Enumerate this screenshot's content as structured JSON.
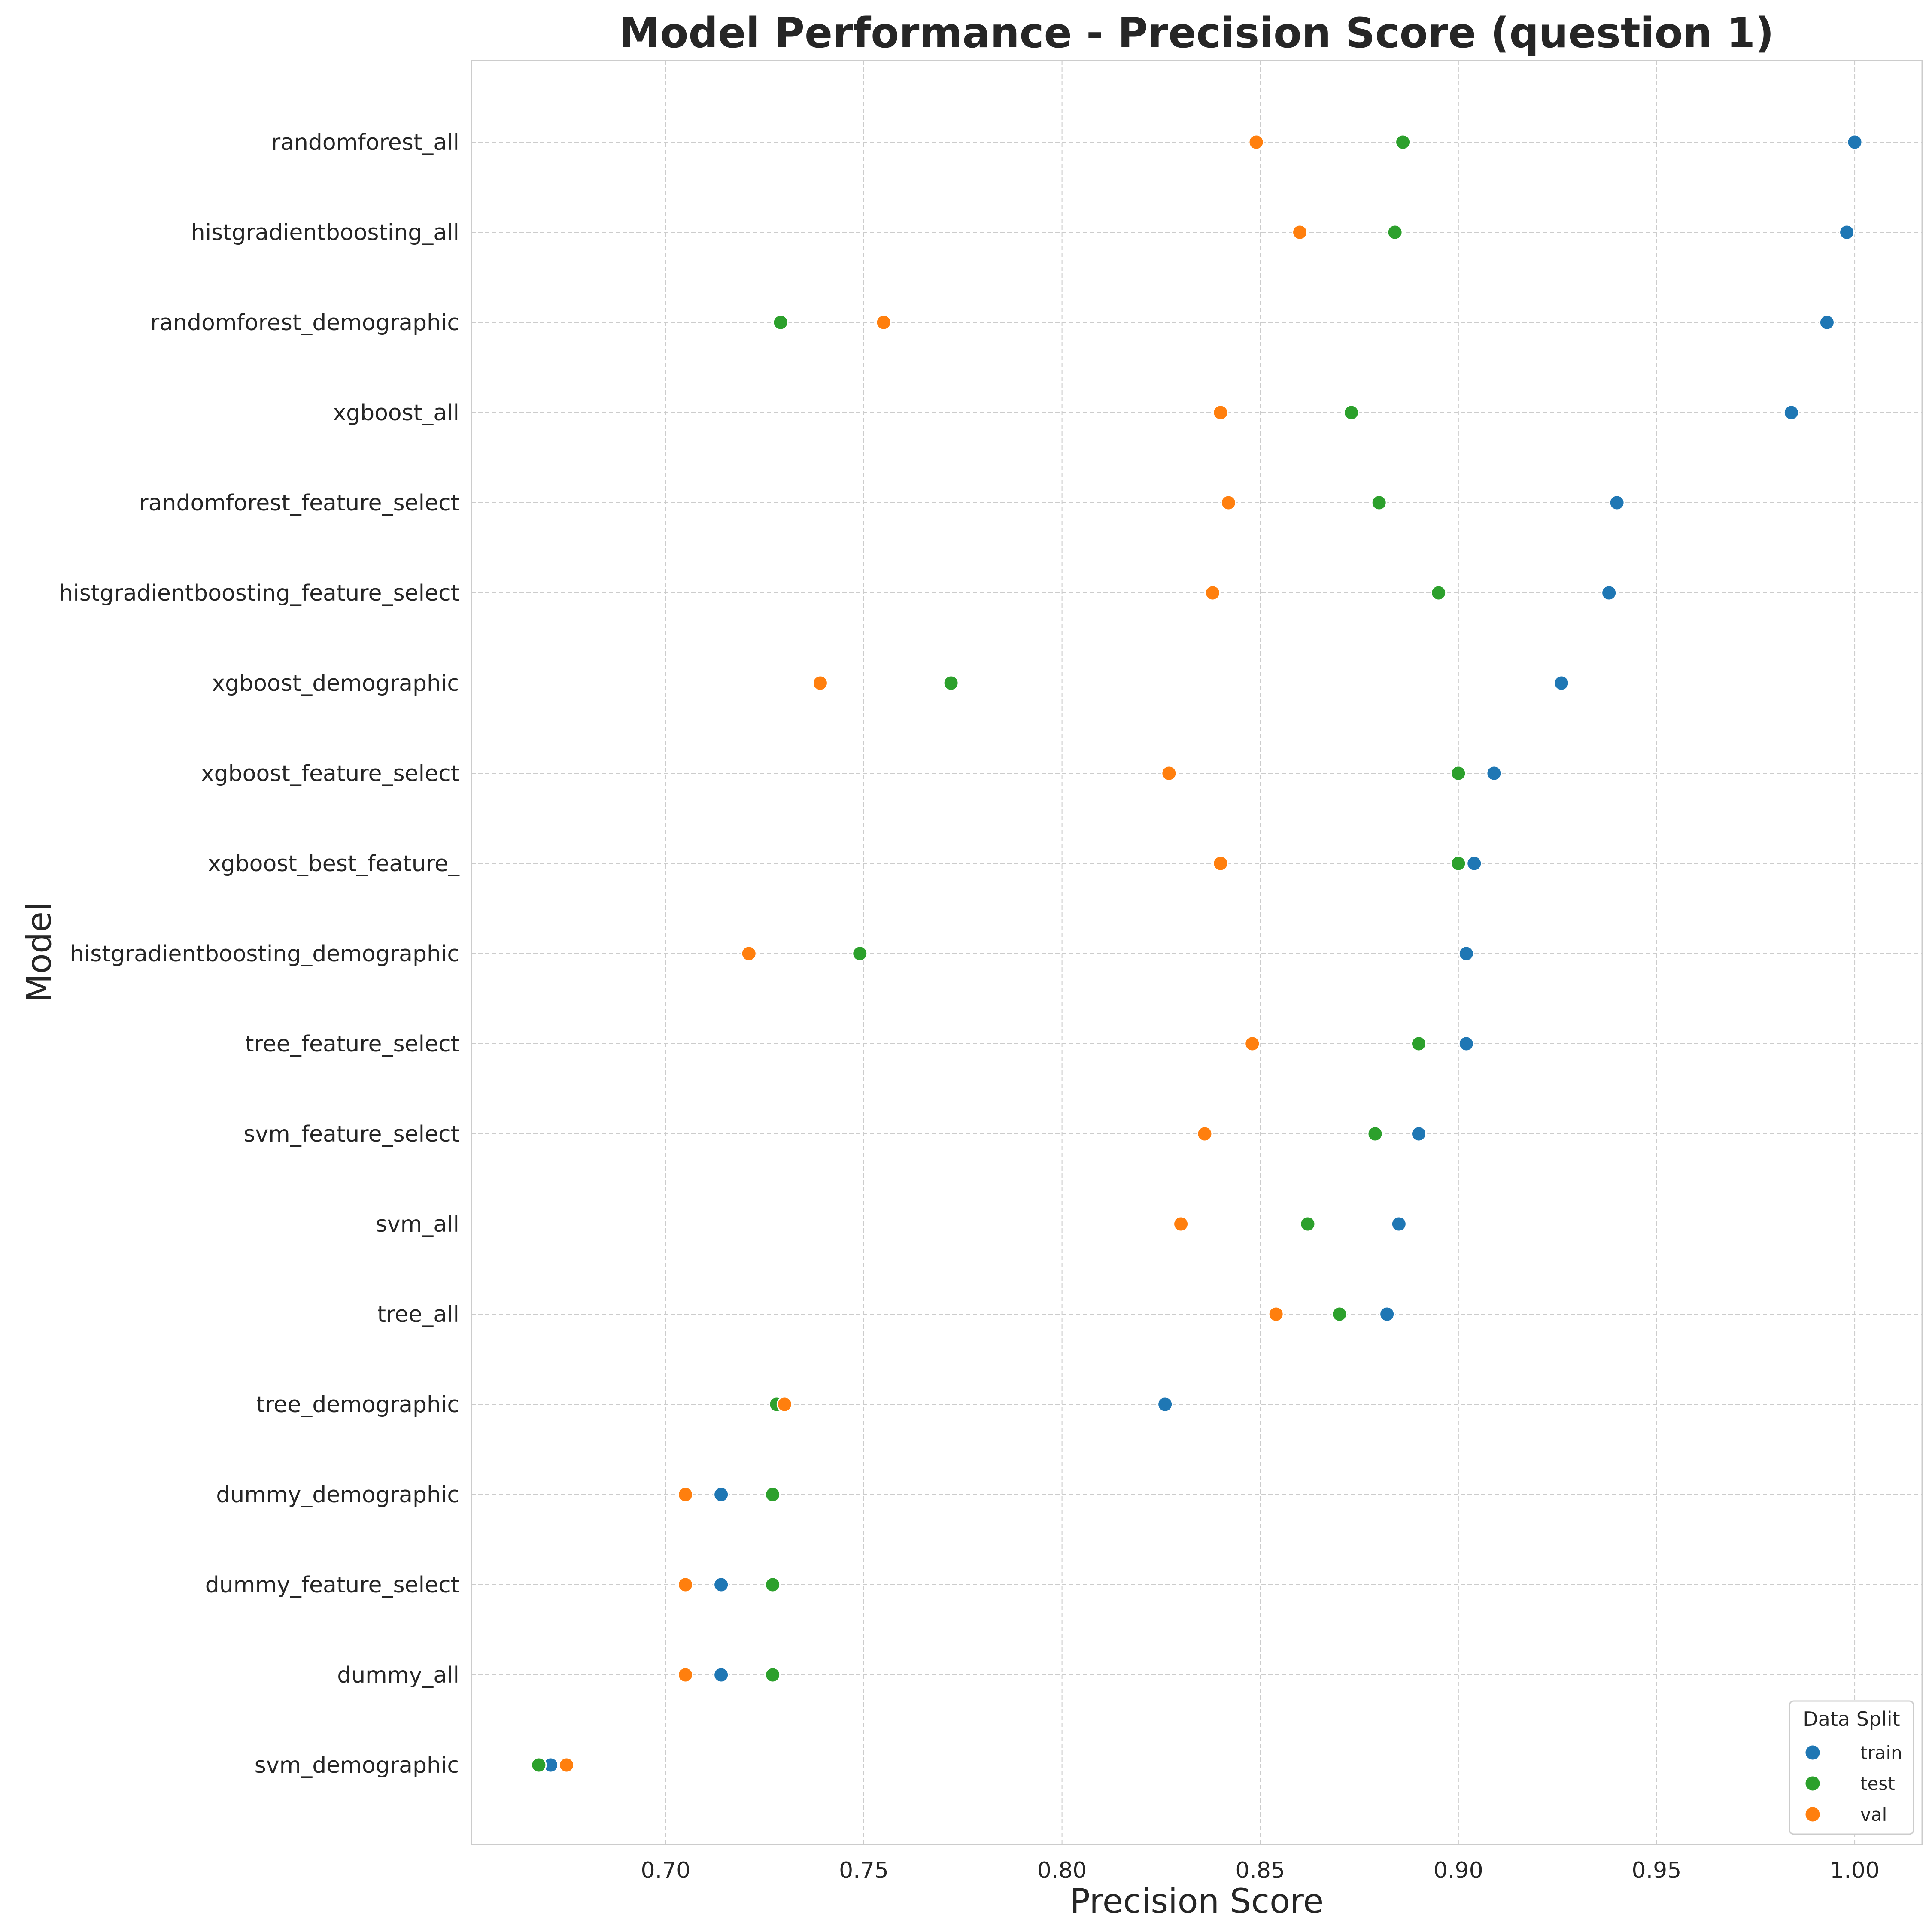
{
  "chart_data": {
    "type": "scatter",
    "title": "Model Performance - Precision Score (question 1)",
    "xlabel": "Precision Score",
    "ylabel": "Model",
    "xlim": [
      0.651,
      1.017
    ],
    "xticks": [
      0.7,
      0.75,
      0.8,
      0.85,
      0.9,
      0.95,
      1.0
    ],
    "xtick_labels": [
      "0.70",
      "0.75",
      "0.80",
      "0.85",
      "0.90",
      "0.95",
      "1.00"
    ],
    "grid": true,
    "legend": {
      "title": "Data Split",
      "placement": "lower-right"
    },
    "categories": [
      "randomforest_all",
      "histgradientboosting_all",
      "randomforest_demographic",
      "xgboost_all",
      "randomforest_feature_select",
      "histgradientboosting_feature_select",
      "xgboost_demographic",
      "xgboost_feature_select",
      "xgboost_best_feature_",
      "histgradientboosting_demographic",
      "tree_feature_select",
      "svm_feature_select",
      "svm_all",
      "tree_all",
      "tree_demographic",
      "dummy_demographic",
      "dummy_feature_select",
      "dummy_all",
      "svm_demographic"
    ],
    "series": [
      {
        "name": "train",
        "color": "#1f77b4",
        "values": [
          1.0,
          0.998,
          0.993,
          0.984,
          0.94,
          0.938,
          0.926,
          0.909,
          0.904,
          0.902,
          0.902,
          0.89,
          0.885,
          0.882,
          0.826,
          0.714,
          0.714,
          0.714,
          0.671
        ]
      },
      {
        "name": "test",
        "color": "#2ca02c",
        "values": [
          0.886,
          0.884,
          0.729,
          0.873,
          0.88,
          0.895,
          0.772,
          0.9,
          0.9,
          0.749,
          0.89,
          0.879,
          0.862,
          0.87,
          0.728,
          0.727,
          0.727,
          0.727,
          0.668
        ]
      },
      {
        "name": "val",
        "color": "#ff7f0e",
        "values": [
          0.849,
          0.86,
          0.755,
          0.84,
          0.842,
          0.838,
          0.739,
          0.827,
          0.84,
          0.721,
          0.848,
          0.836,
          0.83,
          0.854,
          0.73,
          0.705,
          0.705,
          0.705,
          0.675
        ]
      }
    ]
  }
}
